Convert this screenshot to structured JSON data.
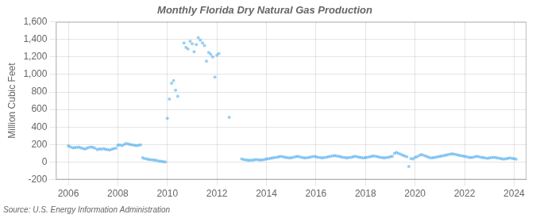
{
  "chart_data": {
    "type": "scatter",
    "title": "Monthly Florida Dry Natural Gas Production",
    "ylabel": "Million Cubic Feet",
    "annotations": [
      "Source: U.S. Energy Information Administration"
    ],
    "grid": true,
    "xlim": [
      2005.5,
      2024.5
    ],
    "xticks": [
      2006,
      2008,
      2010,
      2012,
      2014,
      2016,
      2018,
      2020,
      2022,
      2024
    ],
    "ylim": [
      -200,
      1600
    ],
    "yticks": [
      -200,
      0,
      200,
      400,
      600,
      800,
      {
        "value": 1000,
        "label": "1,000"
      },
      {
        "value": 1200,
        "label": "1,200"
      },
      {
        "value": 1400,
        "label": "1,400"
      },
      {
        "value": 1600,
        "label": "1,600"
      }
    ],
    "x": [
      2006.0,
      2006.08,
      2006.17,
      2006.25,
      2006.33,
      2006.42,
      2006.5,
      2006.58,
      2006.67,
      2006.75,
      2006.83,
      2006.92,
      2007.0,
      2007.08,
      2007.17,
      2007.25,
      2007.33,
      2007.42,
      2007.5,
      2007.58,
      2007.67,
      2007.75,
      2007.83,
      2007.92,
      2008.0,
      2008.08,
      2008.17,
      2008.25,
      2008.33,
      2008.42,
      2008.5,
      2008.58,
      2008.67,
      2008.75,
      2008.83,
      2008.92,
      2009.0,
      2009.08,
      2009.17,
      2009.25,
      2009.33,
      2009.42,
      2009.5,
      2009.58,
      2009.67,
      2009.75,
      2009.83,
      2009.92,
      2010.0,
      2010.08,
      2010.17,
      2010.25,
      2010.33,
      2010.42,
      2010.67,
      2010.75,
      2010.83,
      2010.92,
      2011.0,
      2011.08,
      2011.17,
      2011.25,
      2011.33,
      2011.42,
      2011.5,
      2011.58,
      2011.67,
      2011.75,
      2011.83,
      2011.92,
      2012.0,
      2012.08,
      2012.5,
      2013.0,
      2013.08,
      2013.17,
      2013.25,
      2013.33,
      2013.42,
      2013.5,
      2013.58,
      2013.67,
      2013.75,
      2013.83,
      2013.92,
      2014.0,
      2014.08,
      2014.17,
      2014.25,
      2014.33,
      2014.42,
      2014.5,
      2014.58,
      2014.67,
      2014.75,
      2014.83,
      2014.92,
      2015.0,
      2015.08,
      2015.17,
      2015.25,
      2015.33,
      2015.42,
      2015.5,
      2015.58,
      2015.67,
      2015.75,
      2015.83,
      2015.92,
      2016.0,
      2016.08,
      2016.17,
      2016.25,
      2016.33,
      2016.42,
      2016.5,
      2016.58,
      2016.67,
      2016.75,
      2016.83,
      2016.92,
      2017.0,
      2017.08,
      2017.17,
      2017.25,
      2017.33,
      2017.42,
      2017.5,
      2017.58,
      2017.67,
      2017.75,
      2017.83,
      2017.92,
      2018.0,
      2018.08,
      2018.17,
      2018.25,
      2018.33,
      2018.42,
      2018.5,
      2018.58,
      2018.67,
      2018.75,
      2018.83,
      2018.92,
      2019.0,
      2019.08,
      2019.17,
      2019.25,
      2019.33,
      2019.42,
      2019.5,
      2019.58,
      2019.67,
      2019.75,
      2019.83,
      2019.92,
      2020.0,
      2020.08,
      2020.17,
      2020.25,
      2020.33,
      2020.42,
      2020.5,
      2020.58,
      2020.67,
      2020.75,
      2020.83,
      2020.92,
      2021.0,
      2021.08,
      2021.17,
      2021.25,
      2021.33,
      2021.42,
      2021.5,
      2021.58,
      2021.67,
      2021.75,
      2021.83,
      2021.92,
      2022.0,
      2022.08,
      2022.17,
      2022.25,
      2022.33,
      2022.42,
      2022.5,
      2022.58,
      2022.67,
      2022.75,
      2022.83,
      2022.92,
      2023.0,
      2023.08,
      2023.17,
      2023.25,
      2023.33,
      2023.42,
      2023.5,
      2023.58,
      2023.67,
      2023.75,
      2023.83,
      2023.92,
      2024.0,
      2024.08
    ],
    "values": [
      185,
      175,
      162,
      165,
      168,
      172,
      162,
      155,
      150,
      158,
      168,
      172,
      168,
      158,
      143,
      152,
      148,
      153,
      148,
      143,
      138,
      148,
      153,
      158,
      192,
      197,
      187,
      202,
      212,
      207,
      202,
      197,
      192,
      187,
      192,
      197,
      50,
      40,
      35,
      30,
      28,
      25,
      22,
      18,
      12,
      8,
      5,
      3,
      500,
      720,
      900,
      930,
      820,
      750,
      1360,
      1310,
      1290,
      1380,
      1350,
      1260,
      1340,
      1420,
      1390,
      1360,
      1330,
      1150,
      1250,
      1230,
      1200,
      970,
      1220,
      1240,
      510,
      35,
      30,
      25,
      22,
      20,
      22,
      25,
      30,
      27,
      22,
      25,
      30,
      35,
      38,
      42,
      48,
      52,
      55,
      60,
      65,
      60,
      55,
      52,
      48,
      50,
      55,
      60,
      65,
      60,
      55,
      50,
      48,
      52,
      55,
      60,
      65,
      60,
      55,
      52,
      48,
      52,
      55,
      60,
      65,
      70,
      75,
      70,
      65,
      60,
      55,
      52,
      48,
      52,
      55,
      60,
      65,
      60,
      55,
      52,
      48,
      52,
      55,
      60,
      65,
      70,
      65,
      60,
      55,
      52,
      48,
      52,
      55,
      60,
      65,
      100,
      110,
      100,
      90,
      80,
      70,
      60,
      -50,
      40,
      35,
      55,
      60,
      75,
      85,
      80,
      70,
      60,
      52,
      48,
      52,
      55,
      60,
      65,
      70,
      75,
      80,
      85,
      90,
      95,
      90,
      85,
      80,
      75,
      70,
      65,
      60,
      55,
      52,
      55,
      60,
      65,
      60,
      55,
      52,
      48,
      42,
      48,
      52,
      55,
      52,
      48,
      42,
      38,
      33,
      38,
      42,
      48,
      42,
      38,
      33
    ]
  }
}
